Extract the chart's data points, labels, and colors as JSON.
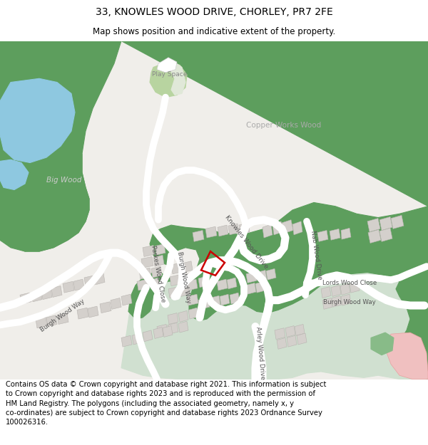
{
  "title": "33, KNOWLES WOOD DRIVE, CHORLEY, PR7 2FE",
  "subtitle": "Map shows position and indicative extent of the property.",
  "footer": "Contains OS data © Crown copyright and database right 2021. This information is subject\nto Crown copyright and database rights 2023 and is reproduced with the permission of\nHM Land Registry. The polygons (including the associated geometry, namely x, y\nco-ordinates) are subject to Crown copyright and database rights 2023 Ordnance Survey\n100026316.",
  "title_fontsize": 10,
  "subtitle_fontsize": 8.5,
  "footer_fontsize": 7.2,
  "bg_map": "#f0eeea",
  "green_wood": "#5d9e5d",
  "green_light": "#8dc88d",
  "green_playspace": "#b8d4a0",
  "blue_water": "#8ec8e0",
  "building_color": "#d4d0cc",
  "building_edge": "#b8b4b0",
  "red_plot": "#cc0000",
  "pink_area": "#f0c0c0",
  "white": "#ffffff",
  "road_light": "#e8e4e0"
}
